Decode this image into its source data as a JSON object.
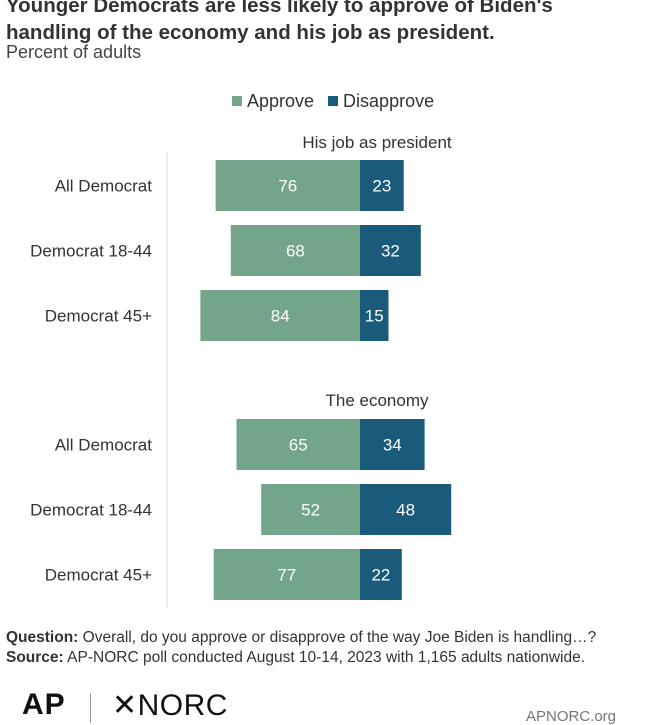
{
  "title": "Younger Democrats are less likely to approve of Biden's handling of the economy and his job as president.",
  "subtitle": "Percent of adults",
  "legend": {
    "approve": "Approve",
    "disapprove": "Disapprove"
  },
  "colors": {
    "approve": "#72a58a",
    "disapprove": "#1a5a7a",
    "approve_text": "#ffffff",
    "disapprove_text": "#ffffff",
    "axis": "#dddddd"
  },
  "chart_data": {
    "type": "bar",
    "orientation": "horizontal-diverging",
    "panels": [
      {
        "title": "His job as president",
        "categories": [
          "All Democrat",
          "Democrat 18-44",
          "Democrat 45+"
        ],
        "series": [
          {
            "name": "Approve",
            "values": [
              76,
              68,
              84
            ]
          },
          {
            "name": "Disapprove",
            "values": [
              23,
              32,
              15
            ]
          }
        ]
      },
      {
        "title": "The economy",
        "categories": [
          "All Democrat",
          "Democrat 18-44",
          "Democrat 45+"
        ],
        "series": [
          {
            "name": "Approve",
            "values": [
              65,
              52,
              77
            ]
          },
          {
            "name": "Disapprove",
            "values": [
              34,
              48,
              22
            ]
          }
        ]
      }
    ]
  },
  "footer": {
    "question_label": "Question:",
    "question": "Overall, do you approve or disapprove of the way Joe Biden is handling…?",
    "source_label": "Source:",
    "source": "AP-NORC poll conducted August 10-14, 2023 with 1,165 adults nationwide."
  },
  "logos": {
    "ap": "AP",
    "norc": "NORC",
    "site": "APNORC.org"
  }
}
